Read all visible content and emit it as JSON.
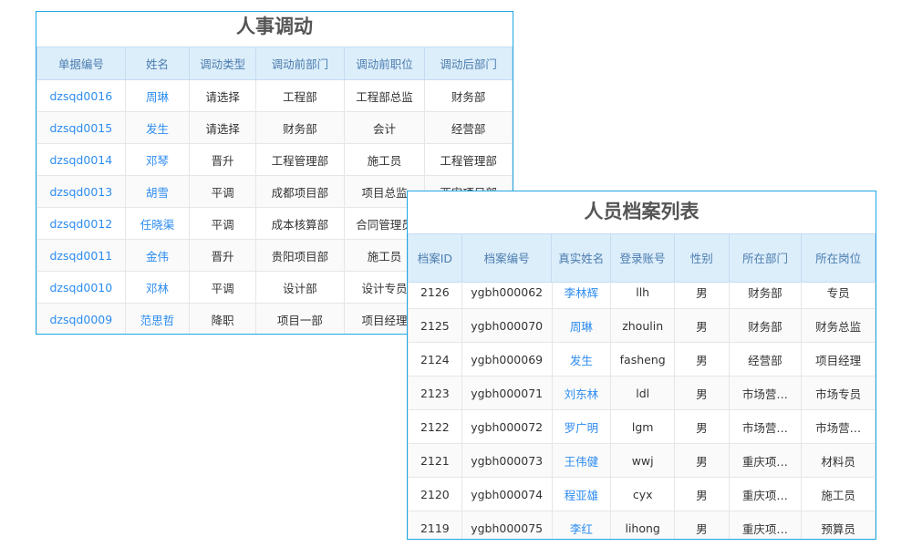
{
  "transfer": {
    "title": "人事调动",
    "headers": [
      "单据编号",
      "姓名",
      "调动类型",
      "调动前部门",
      "调动前职位",
      "调动后部门"
    ],
    "rows": [
      [
        "dzsqd0016",
        "周琳",
        "请选择",
        "工程部",
        "工程部总监",
        "财务部"
      ],
      [
        "dzsqd0015",
        "发生",
        "请选择",
        "财务部",
        "会计",
        "经营部"
      ],
      [
        "dzsqd0014",
        "邓琴",
        "晋升",
        "工程管理部",
        "施工员",
        "工程管理部"
      ],
      [
        "dzsqd0013",
        "胡雪",
        "平调",
        "成都项目部",
        "项目总监",
        "西安项目部"
      ],
      [
        "dzsqd0012",
        "任晓渠",
        "平调",
        "成本核算部",
        "合同管理员",
        ""
      ],
      [
        "dzsqd0011",
        "金伟",
        "晋升",
        "贵阳项目部",
        "施工员",
        ""
      ],
      [
        "dzsqd0010",
        "邓林",
        "平调",
        "设计部",
        "设计专员",
        ""
      ],
      [
        "dzsqd0009",
        "范思哲",
        "降职",
        "项目一部",
        "项目经理",
        ""
      ]
    ]
  },
  "archive": {
    "title": "人员档案列表",
    "headers": [
      "档案ID",
      "档案编号",
      "真实姓名",
      "登录账号",
      "性别",
      "所在部门",
      "所在岗位"
    ],
    "rows": [
      [
        "2126",
        "ygbh000062",
        "李林辉",
        "llh",
        "男",
        "财务部",
        "专员"
      ],
      [
        "2125",
        "ygbh000070",
        "周琳",
        "zhoulin",
        "男",
        "财务部",
        "财务总监"
      ],
      [
        "2124",
        "ygbh000069",
        "发生",
        "fasheng",
        "男",
        "经营部",
        "项目经理"
      ],
      [
        "2123",
        "ygbh000071",
        "刘东林",
        "ldl",
        "男",
        "市场营…",
        "市场专员"
      ],
      [
        "2122",
        "ygbh000072",
        "罗广明",
        "lgm",
        "男",
        "市场营…",
        "市场营…"
      ],
      [
        "2121",
        "ygbh000073",
        "王伟健",
        "wwj",
        "男",
        "重庆项…",
        "材料员"
      ],
      [
        "2120",
        "ygbh000074",
        "程亚雄",
        "cyx",
        "男",
        "重庆项…",
        "施工员"
      ],
      [
        "2119",
        "ygbh000075",
        "李红",
        "lihong",
        "男",
        "重庆项…",
        "预算员"
      ]
    ]
  },
  "colors": {
    "border": "#1fa8e6",
    "header_bg": "#ddeefb",
    "link": "#2d8cf0"
  }
}
